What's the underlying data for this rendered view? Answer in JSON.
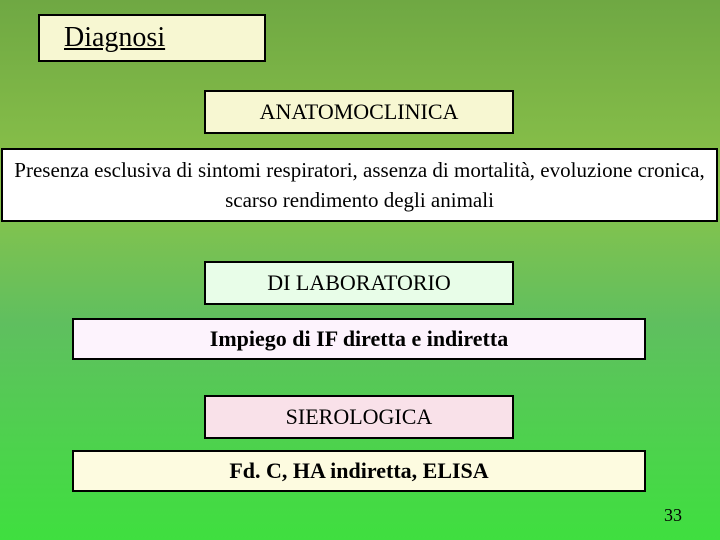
{
  "title": "Diagnosi",
  "sections": [
    {
      "heading": "ANATOMOCLINICA",
      "desc": "Presenza esclusiva di sintomi respiratori, assenza di mortalità, evoluzione cronica, scarso rendimento degli animali"
    },
    {
      "heading": "DI LABORATORIO",
      "desc": "Impiego di IF diretta e indiretta"
    },
    {
      "heading": "SIEROLOGICA",
      "desc": "Fd. C, HA indiretta, ELISA"
    }
  ],
  "page_number": "33",
  "colors": {
    "title_bg": "#f7f7d2",
    "sec1_bg": "#f7f7d2",
    "desc1_bg": "#ffffff",
    "sec2_bg": "#e8fde8",
    "desc2_bg": "#fdf3fd",
    "sec3_bg": "#f9e1e9",
    "desc3_bg": "#fdfbe0",
    "border": "#000000"
  }
}
